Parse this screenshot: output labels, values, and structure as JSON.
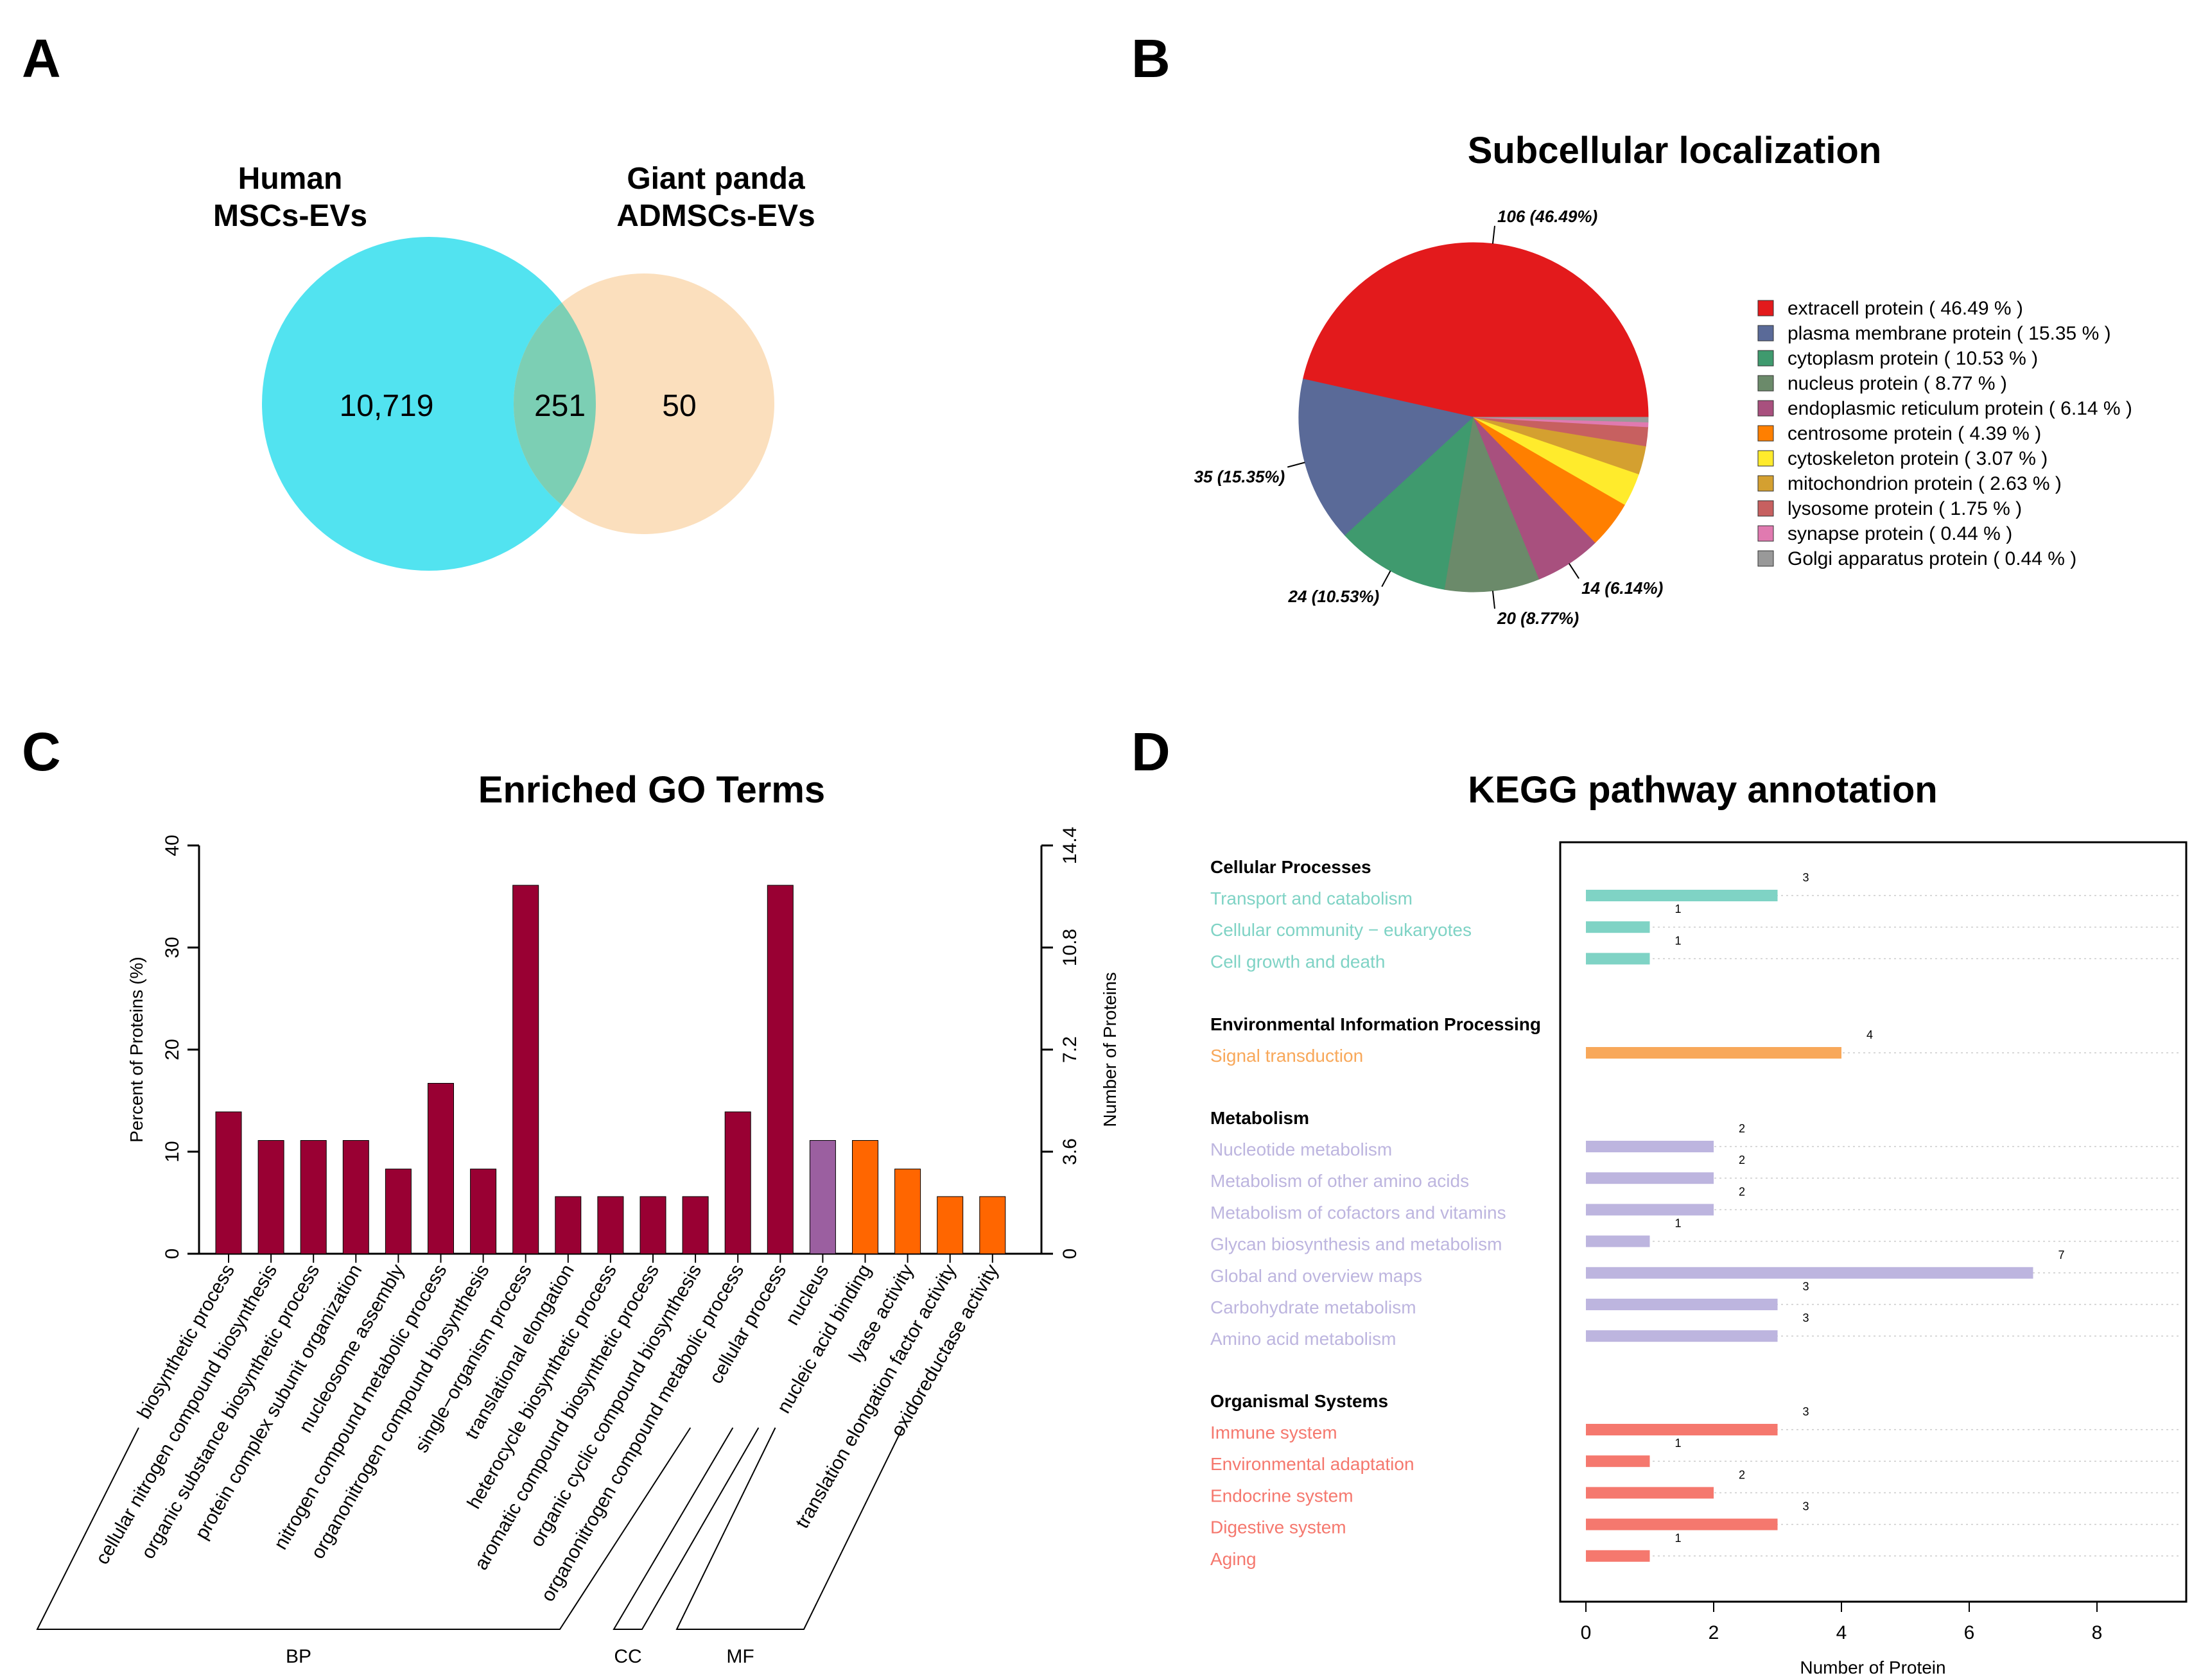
{
  "panels": {
    "a": "A",
    "b": "B",
    "c": "C",
    "d": "D"
  },
  "venn": {
    "left_label": [
      "Human",
      "MSCs-EVs"
    ],
    "right_label": [
      "Giant panda",
      "ADMSCs-EVs"
    ],
    "left_only": "10,719",
    "overlap": "251",
    "right_only": "50",
    "left_color": "#52e3f0",
    "right_color": "#fbdfbd",
    "overlap_color": "#7ccfb4"
  },
  "chart_data": [
    {
      "type": "pie",
      "title": "Subcellular localization",
      "slices": [
        {
          "name": "extracell protein",
          "value": 106,
          "percent": 46.49,
          "color": "#e31a1c",
          "label": "106 (46.49%)",
          "legend": "extracell protein  ( 46.49 % )"
        },
        {
          "name": "plasma membrane protein",
          "value": 35,
          "percent": 15.35,
          "color": "#5a6a98",
          "label": "35 (15.35%)",
          "legend": "plasma membrane protein  ( 15.35 % )"
        },
        {
          "name": "cytoplasm protein",
          "value": 24,
          "percent": 10.53,
          "color": "#3f9a6e",
          "label": "24 (10.53%)",
          "legend": "cytoplasm protein  ( 10.53 % )"
        },
        {
          "name": "nucleus protein",
          "value": 20,
          "percent": 8.77,
          "color": "#6b8a6a",
          "label": "20 (8.77%)",
          "legend": "nucleus protein  ( 8.77 % )"
        },
        {
          "name": "endoplasmic reticulum protein",
          "value": 14,
          "percent": 6.14,
          "color": "#a8507e",
          "label": "14 (6.14%)",
          "legend": "endoplasmic reticulum protein  ( 6.14 % )"
        },
        {
          "name": "centrosome protein",
          "value": 10,
          "percent": 4.39,
          "color": "#ff7f00",
          "label": "",
          "legend": "centrosome protein  ( 4.39 % )"
        },
        {
          "name": "cytoskeleton protein",
          "value": 7,
          "percent": 3.07,
          "color": "#ffeb2c",
          "label": "",
          "legend": "cytoskeleton protein  ( 3.07 % )"
        },
        {
          "name": "mitochondrion protein",
          "value": 6,
          "percent": 2.63,
          "color": "#d4a030",
          "label": "",
          "legend": "mitochondrion protein  ( 2.63 % )"
        },
        {
          "name": "lysosome protein",
          "value": 4,
          "percent": 1.75,
          "color": "#c76060",
          "label": "",
          "legend": "lysosome protein  ( 1.75 % )"
        },
        {
          "name": "synapse protein",
          "value": 1,
          "percent": 0.44,
          "color": "#e07ab0",
          "label": "",
          "legend": "synapse protein  ( 0.44 % )"
        },
        {
          "name": "Golgi apparatus protein",
          "value": 1,
          "percent": 0.44,
          "color": "#999999",
          "label": "",
          "legend": "Golgi apparatus protein  ( 0.44 % )"
        }
      ]
    },
    {
      "type": "bar",
      "title": "Enriched GO Terms",
      "ylabel": "Percent of Proteins (%)",
      "y2label": "Number of Proteins",
      "ylim": [
        0,
        40
      ],
      "y2lim": [
        0,
        14.4
      ],
      "yticks": [
        "0",
        "10",
        "20",
        "30",
        "40"
      ],
      "y2ticks": [
        "0",
        "3.6",
        "7.2",
        "10.8",
        "14.4"
      ],
      "categories": [
        "biosynthetic process",
        "cellular nitrogen compound biosynthesis",
        "organic substance biosynthetic process",
        "protein complex subunit organization",
        "nucleosome assembly",
        "nitrogen compound metabolic process",
        "organonitrogen compound biosynthesis",
        "single−organism process",
        "translational elongation",
        "heterocycle biosynthetic process",
        "aromatic compound biosynthetic process",
        "organic cyclic compound biosynthesis",
        "organonitrogen compound metabolic process",
        "cellular process",
        "nucleus",
        "nucleic acid binding",
        "lyase activity",
        "translation elongation factor activity",
        "oxidoreductase activity"
      ],
      "values": [
        13.9,
        11.1,
        11.1,
        11.1,
        8.3,
        16.7,
        8.3,
        36.1,
        5.6,
        5.6,
        5.6,
        5.6,
        13.9,
        36.1,
        11.1,
        11.1,
        8.3,
        5.6,
        5.6
      ],
      "groups_of_bars": [
        "BP",
        "BP",
        "BP",
        "BP",
        "BP",
        "BP",
        "BP",
        "BP",
        "BP",
        "BP",
        "BP",
        "BP",
        "BP",
        "BP",
        "CC",
        "MF",
        "MF",
        "MF",
        "MF"
      ],
      "group_labels": [
        "BP",
        "CC",
        "MF"
      ],
      "colors": {
        "BP": "#990033",
        "CC": "#9b5fa0",
        "MF": "#ff6600"
      }
    },
    {
      "type": "bar",
      "orientation": "horizontal",
      "title": "KEGG pathway annotation",
      "xlabel": "Number of Protein",
      "xlim": [
        0,
        9
      ],
      "xticks": [
        "0",
        "2",
        "4",
        "6",
        "8"
      ],
      "groups": [
        {
          "name": "Cellular Processes",
          "color": "#7fd3c5",
          "items": [
            {
              "label": "Transport and catabolism",
              "value": 3
            },
            {
              "label": "Cellular community − eukaryotes",
              "value": 1
            },
            {
              "label": "Cell growth and death",
              "value": 1
            }
          ]
        },
        {
          "name": "Environmental Information Processing",
          "color": "#f8a85a",
          "items": [
            {
              "label": "Signal transduction",
              "value": 4
            }
          ]
        },
        {
          "name": "Metabolism",
          "color": "#bdb5df",
          "items": [
            {
              "label": "Nucleotide metabolism",
              "value": 2
            },
            {
              "label": "Metabolism of other amino acids",
              "value": 2
            },
            {
              "label": "Metabolism of cofactors and vitamins",
              "value": 2
            },
            {
              "label": "Glycan biosynthesis and metabolism",
              "value": 1
            },
            {
              "label": "Global and overview maps",
              "value": 7
            },
            {
              "label": "Carbohydrate metabolism",
              "value": 3
            },
            {
              "label": "Amino acid metabolism",
              "value": 3
            }
          ]
        },
        {
          "name": "Organismal Systems",
          "color": "#f5786e",
          "items": [
            {
              "label": "Immune system",
              "value": 3
            },
            {
              "label": "Environmental adaptation",
              "value": 1
            },
            {
              "label": "Endocrine system",
              "value": 2
            },
            {
              "label": "Digestive system",
              "value": 3
            },
            {
              "label": "Aging",
              "value": 1
            }
          ]
        }
      ]
    }
  ]
}
